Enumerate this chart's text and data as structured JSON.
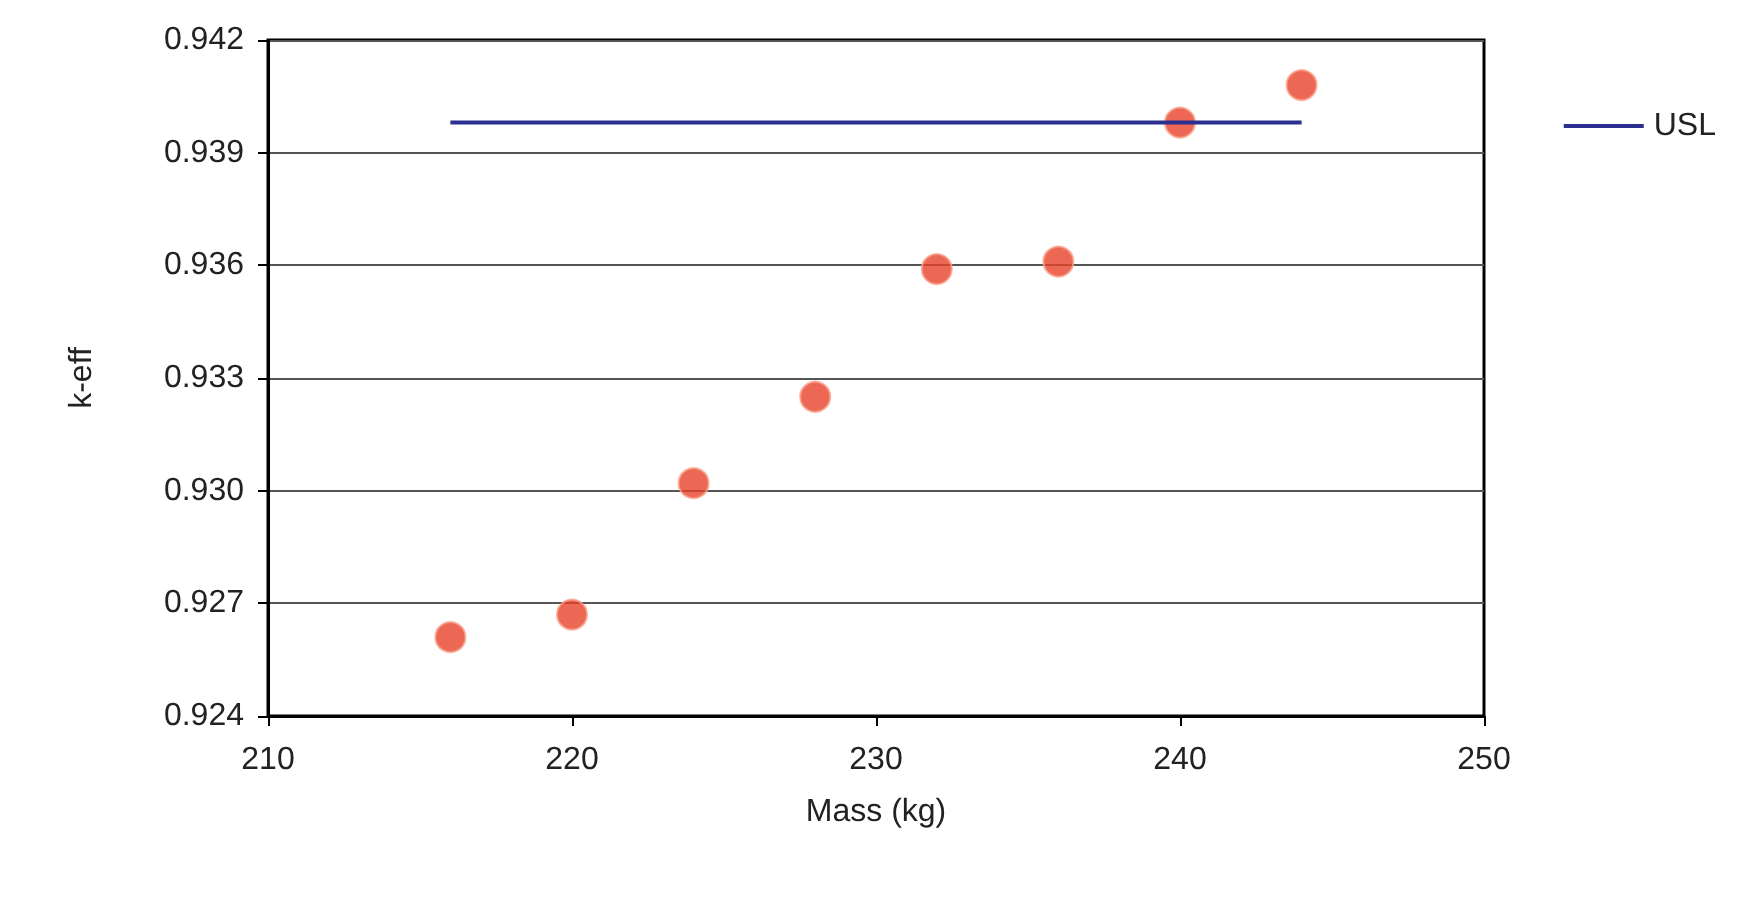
{
  "chart_data": {
    "type": "scatter",
    "xlabel": "Mass (kg)",
    "ylabel": "k-eff",
    "series": [
      {
        "marker": "circle",
        "color": "#e8412b",
        "x": [
          216,
          220,
          224,
          228,
          232,
          236,
          240,
          244
        ],
        "values": [
          0.9261,
          0.9267,
          0.9302,
          0.9325,
          0.9359,
          0.9361,
          0.9398,
          0.9408
        ]
      },
      {
        "type": "line",
        "marker": "none",
        "name": "USL",
        "color": "#2b2f8f",
        "x": [
          216,
          244
        ],
        "values": [
          0.9398,
          0.9398
        ]
      }
    ],
    "xlim": [
      210,
      250
    ],
    "xticks": [
      210,
      220,
      230,
      240,
      250
    ],
    "ylim": [
      0.924,
      0.942
    ],
    "yticks": [
      0.924,
      0.927,
      {
        "value": 0.93,
        "label": "0.930"
      },
      0.933,
      0.936,
      0.939,
      0.942
    ],
    "grid": "y",
    "legend": "right",
    "line_style": "solid"
  }
}
